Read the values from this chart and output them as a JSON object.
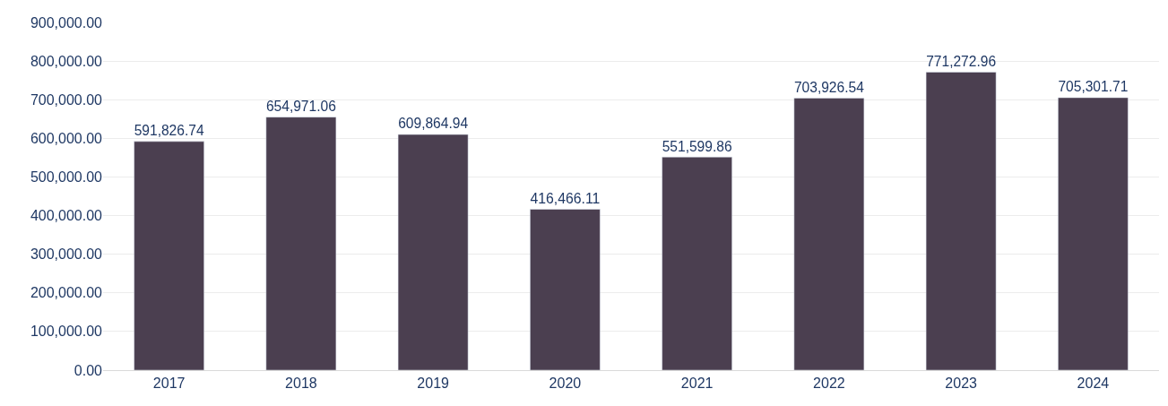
{
  "chart_data": {
    "type": "bar",
    "categories": [
      "2017",
      "2018",
      "2019",
      "2020",
      "2021",
      "2022",
      "2023",
      "2024"
    ],
    "values": [
      591826.74,
      654971.06,
      609864.94,
      416466.11,
      551599.86,
      703926.54,
      771272.96,
      705301.71
    ],
    "value_labels": [
      "591,826.74",
      "654,971.06",
      "609,864.94",
      "416,466.11",
      "551,599.86",
      "703,926.54",
      "771,272.96",
      "705,301.71"
    ],
    "color": "#4b3f50",
    "ylim": [
      0,
      900000
    ],
    "yticks": [
      {
        "value": 0,
        "label": "0.00"
      },
      {
        "value": 100000,
        "label": "100,000.00"
      },
      {
        "value": 200000,
        "label": "200,000.00"
      },
      {
        "value": 300000,
        "label": "300,000.00"
      },
      {
        "value": 400000,
        "label": "400,000.00"
      },
      {
        "value": 500000,
        "label": "500,000.00"
      },
      {
        "value": 600000,
        "label": "600,000.00"
      },
      {
        "value": 700000,
        "label": "700,000.00"
      },
      {
        "value": 800000,
        "label": "800,000.00"
      },
      {
        "value": 900000,
        "label": "900,000.00"
      }
    ],
    "grid": "y"
  }
}
